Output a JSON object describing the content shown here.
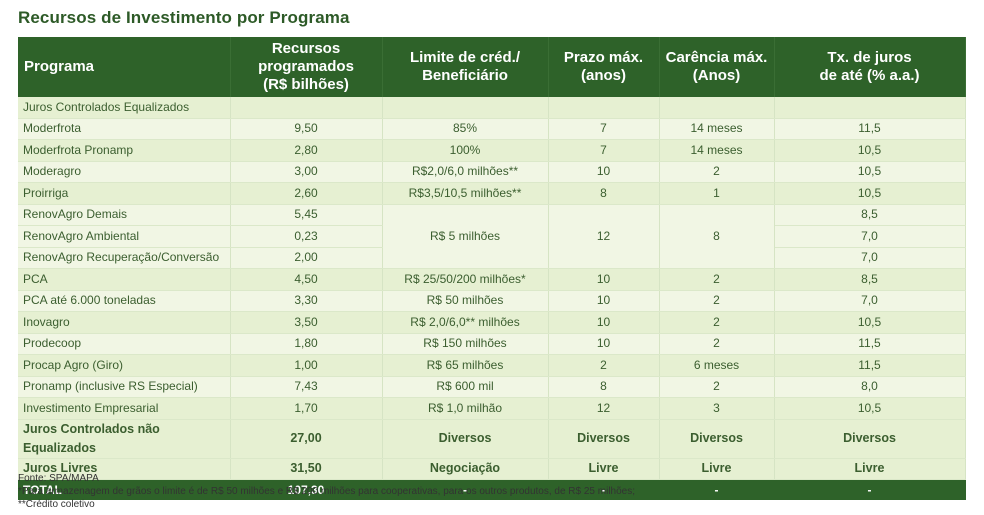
{
  "title": "Recursos de Investimento por Programa",
  "table": {
    "headers": {
      "programa": "Programa",
      "recursos_l1": "Recursos",
      "recursos_l2": "programados",
      "recursos_l3": "(R$ bilhões)",
      "limite_l1": "Limite de créd./",
      "limite_l2": "Beneficiário",
      "prazo_l1": "Prazo máx.",
      "prazo_l2": "(anos)",
      "carencia_l1": "Carência máx.",
      "carencia_l2": "(Anos)",
      "juros_l1": "Tx. de juros",
      "juros_l2": "de até (% a.a.)"
    },
    "rows": [
      {
        "programa": "Juros Controlados Equalizados",
        "recursos": "",
        "limite": "",
        "prazo": "",
        "carencia": "",
        "juros": ""
      },
      {
        "programa": "Moderfrota",
        "recursos": "9,50",
        "limite": "85%",
        "prazo": "7",
        "carencia": "14 meses",
        "juros": "11,5"
      },
      {
        "programa": "Moderfrota Pronamp",
        "recursos": "2,80",
        "limite": "100%",
        "prazo": "7",
        "carencia": "14 meses",
        "juros": "10,5"
      },
      {
        "programa": "Moderagro",
        "recursos": "3,00",
        "limite": "R$2,0/6,0 milhões**",
        "prazo": "10",
        "carencia": "2",
        "juros": "10,5"
      },
      {
        "programa": "Proirriga",
        "recursos": "2,60",
        "limite": "R$3,5/10,5 milhões**",
        "prazo": "8",
        "carencia": "1",
        "juros": "10,5"
      },
      {
        "programa": "RenovAgro Demais",
        "recursos": "5,45",
        "limite": "R$ 5 milhões",
        "prazo": "12",
        "carencia": "8",
        "juros": "8,5"
      },
      {
        "programa": "RenovAgro Ambiental",
        "recursos": "0,23",
        "juros": "7,0"
      },
      {
        "programa": "RenovAgro Recuperação/Conversão",
        "recursos": "2,00",
        "juros": "7,0"
      },
      {
        "programa": "PCA",
        "recursos": "4,50",
        "limite": "R$ 25/50/200 milhões*",
        "prazo": "10",
        "carencia": "2",
        "juros": "8,5"
      },
      {
        "programa": "PCA até 6.000 toneladas",
        "recursos": "3,30",
        "limite": "R$ 50 milhões",
        "prazo": "10",
        "carencia": "2",
        "juros": "7,0"
      },
      {
        "programa": "Inovagro",
        "recursos": "3,50",
        "limite": "R$ 2,0/6,0** milhões",
        "prazo": "10",
        "carencia": "2",
        "juros": "10,5"
      },
      {
        "programa": "Prodecoop",
        "recursos": "1,80",
        "limite": "R$ 150 milhões",
        "prazo": "10",
        "carencia": "2",
        "juros": "11,5"
      },
      {
        "programa": "Procap Agro (Giro)",
        "recursos": "1,00",
        "limite": "R$ 65 milhões",
        "prazo": "2",
        "carencia": "6 meses",
        "juros": "11,5"
      },
      {
        "programa": "Pronamp (inclusive RS Especial)",
        "recursos": "7,43",
        "limite": "R$ 600 mil",
        "prazo": "8",
        "carencia": "2",
        "juros": "8,0"
      },
      {
        "programa": "Investimento Empresarial",
        "recursos": "1,70",
        "limite": "R$ 1,0 milhão",
        "prazo": "12",
        "carencia": "3",
        "juros": "10,5"
      },
      {
        "programa": "Juros Controlados não Equalizados",
        "recursos": "27,00",
        "limite": "Diversos",
        "prazo": "Diversos",
        "carencia": "Diversos",
        "juros": "Diversos"
      },
      {
        "programa": "Juros Livres",
        "recursos": "31,50",
        "limite": "Negociação",
        "prazo": "Livre",
        "carencia": "Livre",
        "juros": "Livre"
      }
    ],
    "total": {
      "programa": "TOTAL",
      "recursos": "107,30",
      "limite": "-",
      "prazo": "-",
      "carencia": "-",
      "juros": "-"
    }
  },
  "notes": {
    "source": "Fonte: SPA/MAPA",
    "note1": "*Para armazenagem de grãos o limite é de R$ 50 milhões e R$ 200 milhões para cooperativas, para os outros produtos, de R$ 25 milhões;",
    "note2": "**Crédito coletivo"
  },
  "colors": {
    "header_bg": "#2e6229",
    "title": "#2d5a27",
    "row_odd": "#e6f0d2",
    "row_even": "#f1f6e4",
    "text": "#3b5e2f"
  }
}
